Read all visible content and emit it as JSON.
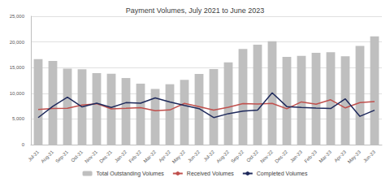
{
  "chart_data": {
    "type": "bar",
    "title": "Payment Volumes, July 2021 to June 2023",
    "categories": [
      "Jul-21",
      "Aug-21",
      "Sep-21",
      "Oct-21",
      "Nov-21",
      "Dec-21",
      "Jan-22",
      "Feb-22",
      "Mar-22",
      "Apr-22",
      "May-22",
      "Jun-22",
      "Jul-22",
      "Aug-22",
      "Sep-22",
      "Oct-22",
      "Nov-22",
      "Dec-22",
      "Jan-23",
      "Feb-23",
      "Mar-23",
      "Apr-23",
      "May-23",
      "Jun-23"
    ],
    "series": [
      {
        "name": "Total Outstanding Volumes",
        "type": "bar",
        "color": "#bfbfbf",
        "values": [
          16656,
          16315,
          14787,
          14667,
          13919,
          13793,
          12966,
          11875,
          10843,
          11761,
          12613,
          13778,
          14717,
          16014,
          18647,
          19466,
          20116,
          17093,
          17279,
          17899,
          17993,
          17220,
          19240,
          21090
        ]
      },
      {
        "name": "Received Volumes",
        "type": "line",
        "color": "#c0504d",
        "values": [
          6826,
          7038,
          7080,
          7712,
          7966,
          6974,
          7065,
          7213,
          6600,
          6749,
          8026,
          7396,
          6712,
          7290,
          7985,
          7898,
          8036,
          6978,
          8324,
          7884,
          8737,
          7150,
          8176,
          8369
        ]
      },
      {
        "name": "Completed Volumes",
        "type": "line",
        "color": "#1f2a5c",
        "values": [
          5266,
          7467,
          9238,
          7354,
          8060,
          7245,
          8170,
          8069,
          9086,
          8312,
          7640,
          7010,
          5266,
          6030,
          6540,
          6720,
          10080,
          7410,
          7250,
          7120,
          7030,
          8910,
          5510,
          6700
        ]
      }
    ],
    "ylim": [
      0,
      25000
    ],
    "yticks": [
      0,
      {
        "value": 5000,
        "label": "5,000"
      },
      {
        "value": 10000,
        "label": "10,000"
      },
      {
        "value": 15000,
        "label": "15,000"
      },
      {
        "value": 20000,
        "label": "20,000"
      },
      {
        "value": 25000,
        "label": "25,000"
      }
    ],
    "grid": true,
    "legend": "bottom"
  }
}
